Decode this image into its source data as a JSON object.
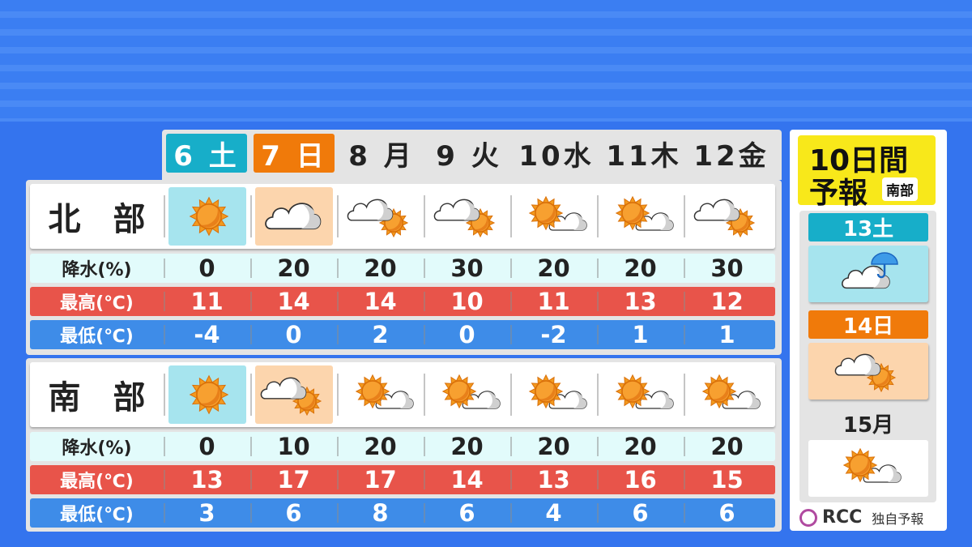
{
  "colors": {
    "saturday": "#17aec9",
    "sunday": "#f07a0a",
    "rain_row": "#e2fbfb",
    "high_row": "#e8544a",
    "low_row": "#3e8ce8",
    "title_box": "#f8e81a"
  },
  "days": [
    {
      "label": "6 土",
      "type": "sat"
    },
    {
      "label": "7 日",
      "type": "sun"
    },
    {
      "label": "8 月",
      "type": ""
    },
    {
      "label": "9 火",
      "type": ""
    },
    {
      "label": "10水",
      "type": ""
    },
    {
      "label": "11木",
      "type": ""
    },
    {
      "label": "12金",
      "type": ""
    }
  ],
  "regions": [
    {
      "name": "北　部",
      "rain_label": "降水(%)",
      "high_label": "最高(℃)",
      "low_label": "最低(℃)",
      "icons": [
        "sunny",
        "cloudy",
        "cloudy-then-sunny",
        "cloudy-then-sunny",
        "sunny-then-cloudy",
        "sunny-then-cloudy",
        "cloudy-then-sunny"
      ],
      "rain": [
        "0",
        "20",
        "20",
        "30",
        "20",
        "20",
        "30"
      ],
      "high": [
        "11",
        "14",
        "14",
        "10",
        "11",
        "13",
        "12"
      ],
      "low": [
        "-4",
        "0",
        "2",
        "0",
        "-2",
        "1",
        "1"
      ]
    },
    {
      "name": "南　部",
      "rain_label": "降水(%)",
      "high_label": "最高(℃)",
      "low_label": "最低(℃)",
      "icons": [
        "sunny",
        "cloudy-then-sunny",
        "sunny-then-cloudy",
        "sunny-then-cloudy",
        "sunny-then-cloudy",
        "sunny-then-cloudy",
        "sunny-then-cloudy"
      ],
      "rain": [
        "0",
        "10",
        "20",
        "20",
        "20",
        "20",
        "20"
      ],
      "high": [
        "13",
        "17",
        "17",
        "14",
        "13",
        "16",
        "15"
      ],
      "low": [
        "3",
        "6",
        "8",
        "6",
        "4",
        "6",
        "6"
      ]
    }
  ],
  "extended": {
    "title_line1": "10日間",
    "title_line2": "予報",
    "region_tag": "南部",
    "days": [
      {
        "label": "13土",
        "type": "sat",
        "icon": "cloudy-with-rain"
      },
      {
        "label": "14日",
        "type": "sun",
        "icon": "cloudy-then-sunny"
      },
      {
        "label": "15月",
        "type": "",
        "icon": "sunny-then-cloudy"
      }
    ]
  },
  "footer": {
    "logo_text": "RCC",
    "caption": "独自予報"
  }
}
